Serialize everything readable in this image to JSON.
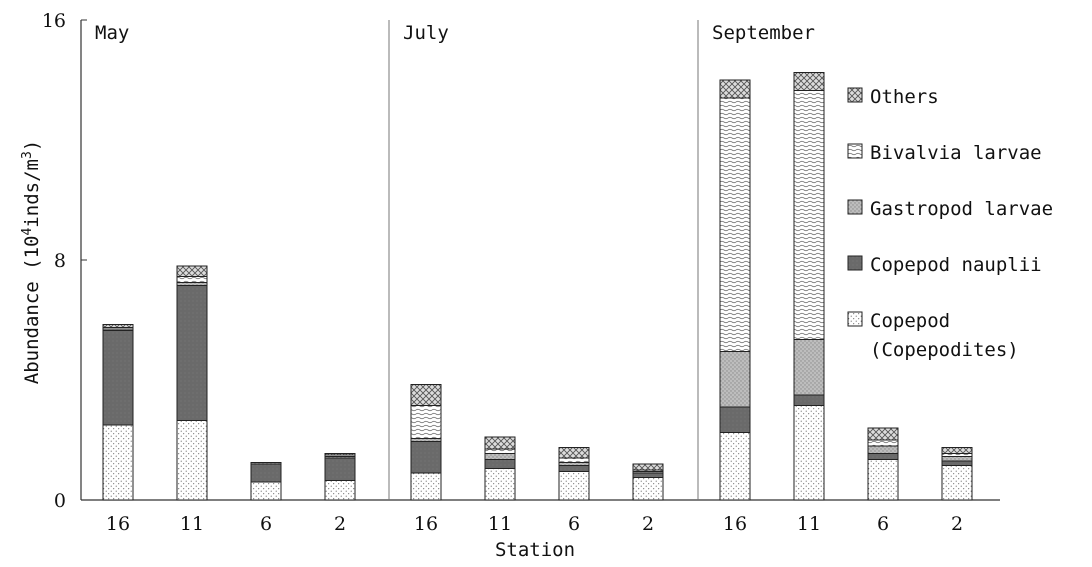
{
  "chart_data": {
    "type": "bar",
    "stacked": true,
    "xlabel": "Station",
    "ylabel": "Abundance (10",
    "ylabel_superscript_1": "4",
    "ylabel_mid": "inds/m",
    "ylabel_superscript_2": "3",
    "ylabel_end": ")",
    "ylim": [
      0,
      16
    ],
    "yticks": [
      "0",
      "8",
      "16"
    ],
    "categories": [
      "16",
      "11",
      "6",
      "2"
    ],
    "panels": [
      {
        "title": "May",
        "series": [
          {
            "name": "Copepod (Copepodites)",
            "values": [
              2.5,
              2.65,
              0.6,
              0.65
            ]
          },
          {
            "name": "Copepod nauplii",
            "values": [
              3.15,
              4.5,
              0.6,
              0.75
            ]
          },
          {
            "name": "Gastropod larvae",
            "values": [
              0.05,
              0.1,
              0.05,
              0.05
            ]
          },
          {
            "name": "Bivalvia larvae",
            "values": [
              0.05,
              0.2,
              0.0,
              0.05
            ]
          },
          {
            "name": "Others",
            "values": [
              0.1,
              0.35,
              0.0,
              0.05
            ]
          }
        ]
      },
      {
        "title": "July",
        "series": [
          {
            "name": "Copepod (Copepodites)",
            "values": [
              0.9,
              1.05,
              0.95,
              0.75
            ]
          },
          {
            "name": "Copepod nauplii",
            "values": [
              1.05,
              0.3,
              0.2,
              0.15
            ]
          },
          {
            "name": "Gastropod larvae",
            "values": [
              0.1,
              0.2,
              0.1,
              0.05
            ]
          },
          {
            "name": "Bivalvia larvae",
            "values": [
              1.1,
              0.15,
              0.15,
              0.05
            ]
          },
          {
            "name": "Others",
            "values": [
              0.7,
              0.4,
              0.35,
              0.2
            ]
          }
        ]
      },
      {
        "title": "September",
        "series": [
          {
            "name": "Copepod (Copepodites)",
            "values": [
              2.25,
              3.15,
              1.35,
              1.15
            ]
          },
          {
            "name": "Copepod nauplii",
            "values": [
              0.85,
              0.35,
              0.2,
              0.15
            ]
          },
          {
            "name": "Gastropod larvae",
            "values": [
              1.85,
              1.85,
              0.25,
              0.15
            ]
          },
          {
            "name": "Bivalvia larvae",
            "values": [
              8.45,
              8.3,
              0.2,
              0.1
            ]
          },
          {
            "name": "Others",
            "values": [
              0.6,
              0.6,
              0.4,
              0.2
            ]
          }
        ]
      }
    ],
    "legend": [
      {
        "series": "Others",
        "lines": [
          "Others"
        ]
      },
      {
        "series": "Bivalvia larvae",
        "lines": [
          "Bivalvia larvae"
        ]
      },
      {
        "series": "Gastropod larvae",
        "lines": [
          "Gastropod larvae"
        ]
      },
      {
        "series": "Copepod nauplii",
        "lines": [
          "Copepod nauplii"
        ]
      },
      {
        "series": "Copepod (Copepodites)",
        "lines": [
          "Copepod",
          "(Copepodites)"
        ]
      }
    ],
    "legend_position": "right"
  }
}
